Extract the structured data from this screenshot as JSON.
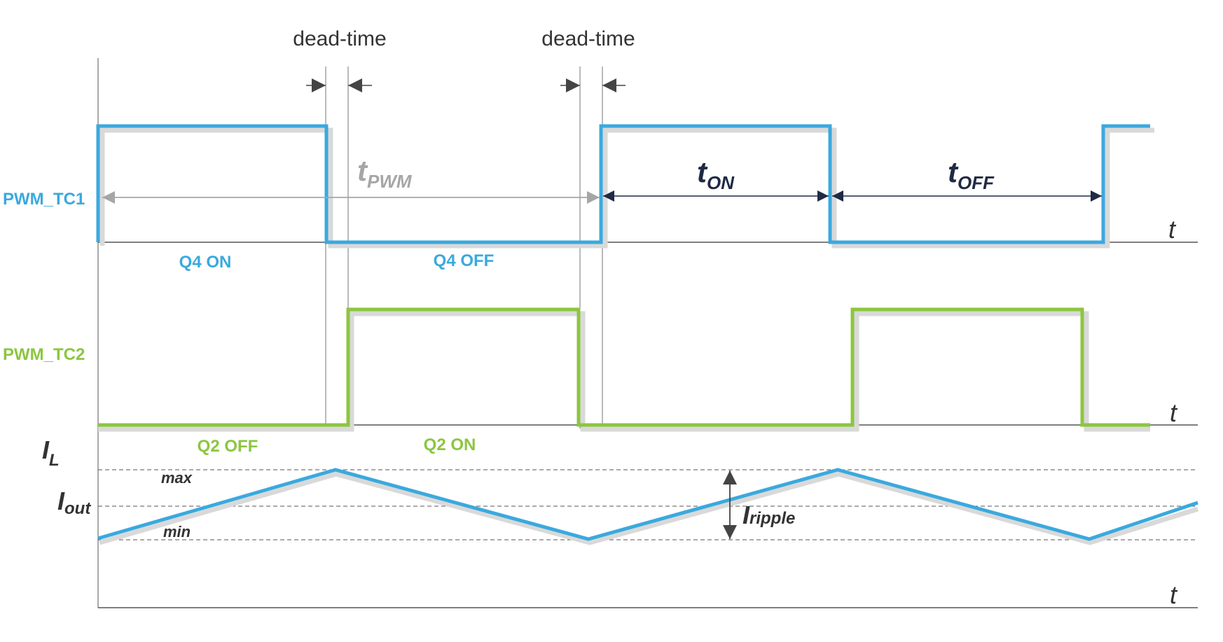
{
  "annotations": {
    "dead_time_1": "dead-time",
    "dead_time_2": "dead-time",
    "t_pwm": "t",
    "t_pwm_sub": "PWM",
    "t_on": "t",
    "t_on_sub": "ON",
    "t_off": "t",
    "t_off_sub": "OFF"
  },
  "signals": {
    "pwm_tc1": {
      "name": "PWM_TC1",
      "color": "#3aa9de",
      "low_label": "Q4 ON",
      "high_label": "Q4 OFF"
    },
    "pwm_tc2": {
      "name": "PWM_TC2",
      "color": "#8cc63f",
      "low_label": "Q2 OFF",
      "high_label": "Q2 ON"
    },
    "inductor_current": {
      "name": "I",
      "name_sub": "L",
      "color": "#3aa9de",
      "avg_label": "I",
      "avg_sub": "out",
      "max_label": "max",
      "min_label": "min",
      "ripple_label": "I",
      "ripple_sub": "ripple"
    }
  },
  "axes": {
    "t1": "t",
    "t2": "t",
    "t3": "t"
  }
}
